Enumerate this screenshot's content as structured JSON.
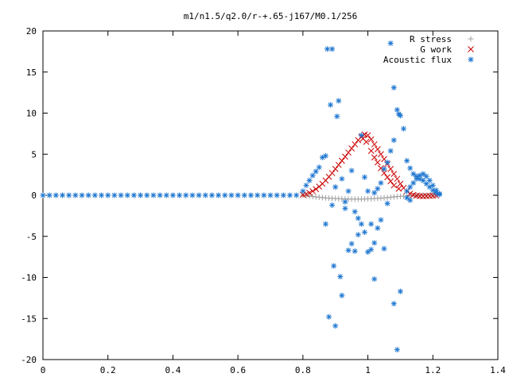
{
  "chart_data": {
    "type": "scatter",
    "title": "m1/n1.5/q2.0/r-+.65-j167/M0.1/256",
    "xlabel": "",
    "ylabel": "",
    "xlim": [
      0,
      1.4
    ],
    "ylim": [
      -20,
      20
    ],
    "x_ticks": [
      "0",
      "0.2",
      "0.4",
      "0.6",
      "0.8",
      "1",
      "1.2",
      "1.4"
    ],
    "y_ticks": [
      "20",
      "15",
      "10",
      "5",
      "0",
      "-5",
      "-10",
      "-15",
      "-20"
    ],
    "legend_position": "top-right",
    "grid": false,
    "series": [
      {
        "name": "R stress",
        "marker": "plus",
        "color": "#a0a0a0",
        "points": [
          [
            0.8,
            0.0
          ],
          [
            0.81,
            -0.05
          ],
          [
            0.82,
            -0.1
          ],
          [
            0.83,
            -0.15
          ],
          [
            0.84,
            -0.2
          ],
          [
            0.85,
            -0.24
          ],
          [
            0.86,
            -0.28
          ],
          [
            0.87,
            -0.32
          ],
          [
            0.88,
            -0.35
          ],
          [
            0.89,
            -0.38
          ],
          [
            0.9,
            -0.4
          ],
          [
            0.91,
            -0.42
          ],
          [
            0.92,
            -0.44
          ],
          [
            0.93,
            -0.45
          ],
          [
            0.94,
            -0.46
          ],
          [
            0.95,
            -0.47
          ],
          [
            0.96,
            -0.47
          ],
          [
            0.97,
            -0.47
          ],
          [
            0.98,
            -0.46
          ],
          [
            0.99,
            -0.45
          ],
          [
            1.0,
            -0.44
          ],
          [
            1.01,
            -0.42
          ],
          [
            1.02,
            -0.4
          ],
          [
            1.03,
            -0.38
          ],
          [
            1.04,
            -0.35
          ],
          [
            1.05,
            -0.32
          ],
          [
            1.06,
            -0.28
          ],
          [
            1.07,
            -0.24
          ],
          [
            1.08,
            -0.2
          ],
          [
            1.09,
            -0.16
          ],
          [
            1.1,
            -0.13
          ],
          [
            1.11,
            -0.1
          ],
          [
            1.12,
            -0.08
          ],
          [
            1.13,
            -0.06
          ],
          [
            1.14,
            -0.04
          ],
          [
            1.15,
            -0.03
          ],
          [
            1.16,
            -0.02
          ],
          [
            1.17,
            -0.01
          ],
          [
            1.18,
            -0.01
          ],
          [
            1.19,
            0.0
          ],
          [
            1.2,
            0.0
          ],
          [
            1.21,
            0.0
          ]
        ]
      },
      {
        "name": "G work",
        "marker": "cross",
        "color": "#cc0000",
        "points": [
          [
            0.8,
            0.05
          ],
          [
            0.81,
            0.15
          ],
          [
            0.82,
            0.3
          ],
          [
            0.83,
            0.5
          ],
          [
            0.84,
            0.75
          ],
          [
            0.85,
            1.05
          ],
          [
            0.86,
            1.4
          ],
          [
            0.87,
            1.8
          ],
          [
            0.88,
            2.25
          ],
          [
            0.89,
            2.7
          ],
          [
            0.9,
            3.2
          ],
          [
            0.91,
            3.7
          ],
          [
            0.92,
            4.2
          ],
          [
            0.93,
            4.7
          ],
          [
            0.94,
            5.2
          ],
          [
            0.95,
            5.7
          ],
          [
            0.96,
            6.2
          ],
          [
            0.97,
            6.7
          ],
          [
            0.98,
            7.1
          ],
          [
            0.99,
            7.4
          ],
          [
            1.0,
            7.3
          ],
          [
            0.985,
            6.9
          ],
          [
            0.995,
            6.5
          ],
          [
            1.01,
            6.8
          ],
          [
            1.02,
            6.2
          ],
          [
            1.03,
            5.6
          ],
          [
            1.04,
            5.0
          ],
          [
            1.05,
            4.4
          ],
          [
            1.06,
            3.8
          ],
          [
            1.07,
            3.2
          ],
          [
            1.08,
            2.6
          ],
          [
            1.09,
            2.0
          ],
          [
            1.1,
            1.4
          ],
          [
            1.11,
            0.9
          ],
          [
            1.12,
            0.5
          ],
          [
            1.13,
            0.2
          ],
          [
            1.14,
            0.05
          ],
          [
            1.15,
            -0.05
          ],
          [
            1.16,
            -0.1
          ],
          [
            1.17,
            -0.12
          ],
          [
            1.18,
            -0.1
          ],
          [
            1.19,
            -0.08
          ],
          [
            1.2,
            -0.05
          ],
          [
            1.21,
            -0.03
          ],
          [
            1.02,
            4.6
          ],
          [
            1.04,
            3.3
          ],
          [
            1.06,
            2.2
          ],
          [
            1.08,
            1.2
          ],
          [
            1.095,
            0.8
          ],
          [
            1.01,
            5.4
          ],
          [
            1.03,
            4.0
          ],
          [
            1.05,
            2.7
          ],
          [
            1.07,
            1.7
          ]
        ]
      },
      {
        "name": "Acoustic flux",
        "marker": "star",
        "color": "#1f77d0",
        "points": [
          [
            0.0,
            0.0
          ],
          [
            0.02,
            0.0
          ],
          [
            0.04,
            0.0
          ],
          [
            0.06,
            0.0
          ],
          [
            0.08,
            0.0
          ],
          [
            0.1,
            0.0
          ],
          [
            0.12,
            0.0
          ],
          [
            0.14,
            0.0
          ],
          [
            0.16,
            0.0
          ],
          [
            0.18,
            0.0
          ],
          [
            0.2,
            0.0
          ],
          [
            0.22,
            0.0
          ],
          [
            0.24,
            0.0
          ],
          [
            0.26,
            0.0
          ],
          [
            0.28,
            0.0
          ],
          [
            0.3,
            0.0
          ],
          [
            0.32,
            0.0
          ],
          [
            0.34,
            0.0
          ],
          [
            0.36,
            0.0
          ],
          [
            0.38,
            0.0
          ],
          [
            0.4,
            0.0
          ],
          [
            0.42,
            0.0
          ],
          [
            0.44,
            0.0
          ],
          [
            0.46,
            0.0
          ],
          [
            0.48,
            0.0
          ],
          [
            0.5,
            0.0
          ],
          [
            0.52,
            0.0
          ],
          [
            0.54,
            0.0
          ],
          [
            0.56,
            0.0
          ],
          [
            0.58,
            0.0
          ],
          [
            0.6,
            0.0
          ],
          [
            0.62,
            0.0
          ],
          [
            0.64,
            0.0
          ],
          [
            0.66,
            0.0
          ],
          [
            0.68,
            0.0
          ],
          [
            0.7,
            0.0
          ],
          [
            0.72,
            0.0
          ],
          [
            0.74,
            0.0
          ],
          [
            0.76,
            0.0
          ],
          [
            0.78,
            0.0
          ],
          [
            0.8,
            0.5
          ],
          [
            0.81,
            1.2
          ],
          [
            0.82,
            1.8
          ],
          [
            0.83,
            2.4
          ],
          [
            0.84,
            2.9
          ],
          [
            0.85,
            3.4
          ],
          [
            0.86,
            4.6
          ],
          [
            0.87,
            4.8
          ],
          [
            0.875,
            17.8
          ],
          [
            0.89,
            17.8
          ],
          [
            0.885,
            11.0
          ],
          [
            0.88,
            -14.8
          ],
          [
            0.9,
            -15.9
          ],
          [
            0.895,
            -8.6
          ],
          [
            0.91,
            11.5
          ],
          [
            0.92,
            -12.2
          ],
          [
            0.915,
            -9.9
          ],
          [
            0.905,
            9.6
          ],
          [
            0.87,
            -3.5
          ],
          [
            0.89,
            -1.2
          ],
          [
            0.9,
            1.0
          ],
          [
            0.92,
            2.0
          ],
          [
            0.93,
            -0.8
          ],
          [
            0.94,
            -6.7
          ],
          [
            0.95,
            -5.9
          ],
          [
            0.96,
            -6.8
          ],
          [
            0.97,
            -4.8
          ],
          [
            0.93,
            -1.6
          ],
          [
            0.94,
            0.5
          ],
          [
            0.95,
            3.0
          ],
          [
            0.96,
            -2.0
          ],
          [
            0.97,
            -2.8
          ],
          [
            0.98,
            -3.5
          ],
          [
            0.99,
            -4.5
          ],
          [
            1.0,
            -6.9
          ],
          [
            1.01,
            -6.6
          ],
          [
            1.02,
            -5.8
          ],
          [
            1.03,
            -4.0
          ],
          [
            1.04,
            -3.0
          ],
          [
            1.05,
            -6.5
          ],
          [
            1.06,
            -1.0
          ],
          [
            1.02,
            -10.2
          ],
          [
            1.01,
            -3.5
          ],
          [
            1.0,
            0.5
          ],
          [
            0.99,
            2.2
          ],
          [
            0.98,
            7.3
          ],
          [
            1.07,
            18.5
          ],
          [
            1.08,
            13.1
          ],
          [
            1.09,
            10.4
          ],
          [
            1.095,
            9.9
          ],
          [
            1.1,
            9.7
          ],
          [
            1.11,
            8.1
          ],
          [
            1.12,
            -0.3
          ],
          [
            1.13,
            -0.6
          ],
          [
            1.08,
            -13.2
          ],
          [
            1.09,
            -18.8
          ],
          [
            1.1,
            -11.7
          ],
          [
            1.07,
            5.4
          ],
          [
            1.08,
            6.7
          ],
          [
            1.06,
            4.0
          ],
          [
            1.05,
            3.2
          ],
          [
            1.04,
            1.5
          ],
          [
            1.03,
            0.8
          ],
          [
            1.02,
            0.3
          ],
          [
            1.12,
            4.2
          ],
          [
            1.13,
            3.3
          ],
          [
            1.14,
            2.6
          ],
          [
            1.15,
            2.3
          ],
          [
            1.16,
            2.0
          ],
          [
            1.17,
            1.8
          ],
          [
            1.18,
            1.4
          ],
          [
            1.19,
            1.0
          ],
          [
            1.2,
            0.6
          ],
          [
            1.21,
            0.3
          ],
          [
            1.22,
            0.1
          ],
          [
            1.12,
            0.5
          ],
          [
            1.13,
            1.0
          ],
          [
            1.14,
            1.5
          ],
          [
            1.15,
            2.0
          ],
          [
            1.16,
            2.4
          ],
          [
            1.17,
            2.6
          ],
          [
            1.18,
            2.3
          ],
          [
            1.19,
            1.8
          ],
          [
            1.2,
            1.2
          ],
          [
            1.21,
            0.6
          ],
          [
            1.22,
            0.2
          ]
        ]
      }
    ]
  }
}
